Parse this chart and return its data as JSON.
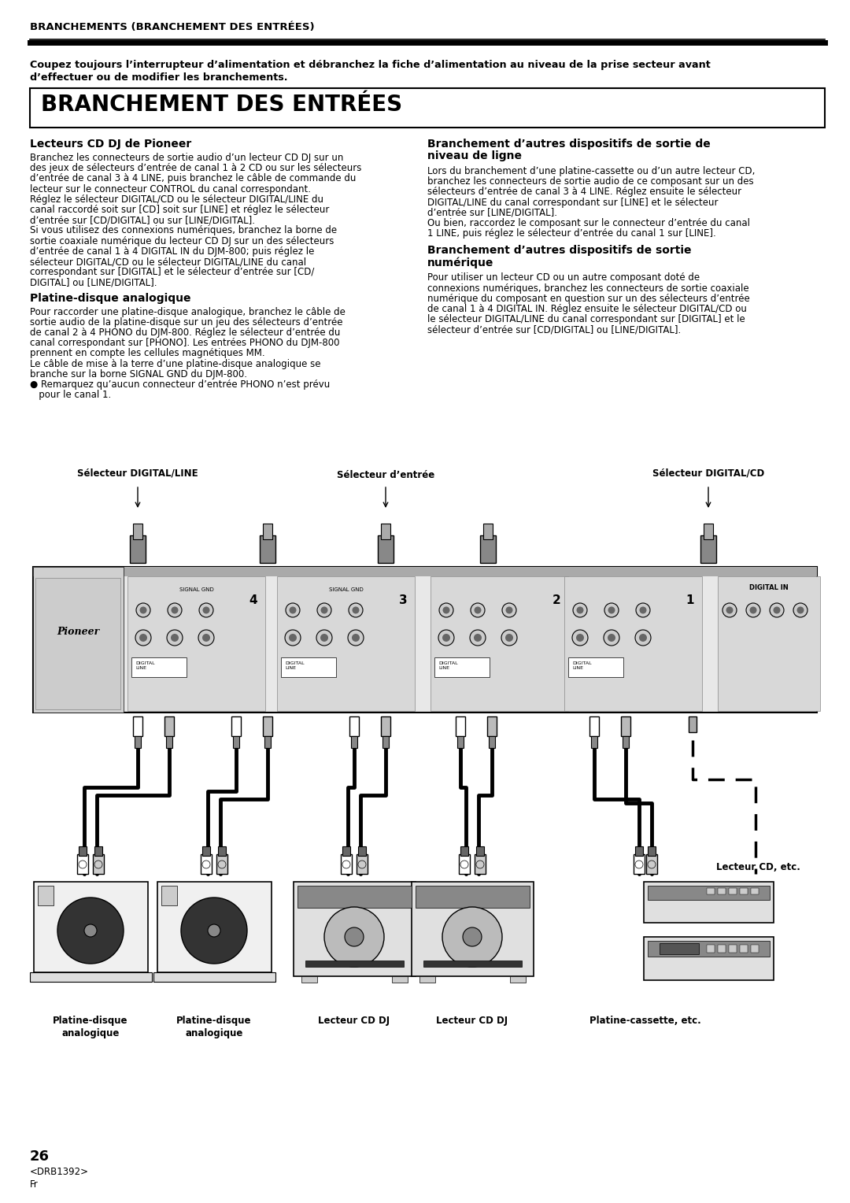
{
  "page_title": "BRANCHEMENTS (BRANCHEMENT DES ENTRÉES)",
  "warning_line1": "Coupez toujours l’interrupteur d’alimentation et débranchez la fiche d’alimentation au niveau de la prise secteur avant",
  "warning_line2": "d’effectuer ou de modifier les branchements.",
  "section_title": "BRANCHEMENT DES ENTRÉES",
  "col1_title1": "Lecteurs CD DJ de Pioneer",
  "col1_body1_lines": [
    "Branchez les connecteurs de sortie audio d’un lecteur CD DJ sur un",
    "des jeux de sélecteurs d’entrée de canal 1 à 2 CD ou sur les sélecteurs",
    "d’entrée de canal 3 à 4 LINE, puis branchez le câble de commande du",
    "lecteur sur le connecteur CONTROL du canal correspondant.",
    "Réglez le sélecteur DIGITAL/CD ou le sélecteur DIGITAL/LINE du",
    "canal raccordé soit sur [CD] soit sur [LINE] et réglez le sélecteur",
    "d’entrée sur [CD/DIGITAL] ou sur [LINE/DIGITAL].",
    "Si vous utilisez des connexions numériques, branchez la borne de",
    "sortie coaxiale numérique du lecteur CD DJ sur un des sélecteurs",
    "d’entrée de canal 1 à 4 DIGITAL IN du DJM-800; puis réglez le",
    "sélecteur DIGITAL/CD ou le sélecteur DIGITAL/LINE du canal",
    "correspondant sur [DIGITAL] et le sélecteur d’entrée sur [CD/",
    "DIGITAL] ou [LINE/DIGITAL]."
  ],
  "col1_title2": "Platine-disque analogique",
  "col1_body2_lines": [
    "Pour raccorder une platine-disque analogique, branchez le câble de",
    "sortie audio de la platine-disque sur un jeu des sélecteurs d’entrée",
    "de canal 2 à 4 PHONO du DJM-800. Réglez le sélecteur d’entrée du",
    "canal correspondant sur [PHONO]. Les entrées PHONO du DJM-800",
    "prennent en compte les cellules magnétiques MM.",
    "Le câble de mise à la terre d’une platine-disque analogique se",
    "branche sur la borne SIGNAL GND du DJM-800.",
    "● Remarquez qu’aucun connecteur d’entrée PHONO n’est prévu",
    "   pour le canal 1."
  ],
  "col2_title1_line1": "Branchement d’autres dispositifs de sortie de",
  "col2_title1_line2": "niveau de ligne",
  "col2_body1_lines": [
    "Lors du branchement d’une platine-cassette ou d’un autre lecteur CD,",
    "branchez les connecteurs de sortie audio de ce composant sur un des",
    "sélecteurs d’entrée de canal 3 à 4 LINE. Réglez ensuite le sélecteur",
    "DIGITAL/LINE du canal correspondant sur [LINE] et le sélecteur",
    "d’entrée sur [LINE/DIGITAL].",
    "Ou bien, raccordez le composant sur le connecteur d’entrée du canal",
    "1 LINE, puis réglez le sélecteur d’entrée du canal 1 sur [LINE]."
  ],
  "col2_title2_line1": "Branchement d’autres dispositifs de sortie",
  "col2_title2_line2": "numérique",
  "col2_body2_lines": [
    "Pour utiliser un lecteur CD ou un autre composant doté de",
    "connexions numériques, branchez les connecteurs de sortie coaxiale",
    "numérique du composant en question sur un des sélecteurs d’entrée",
    "de canal 1 à 4 DIGITAL IN. Réglez ensuite le sélecteur DIGITAL/CD ou",
    "le sélecteur DIGITAL/LINE du canal correspondant sur [DIGITAL] et le",
    "sélecteur d’entrée sur [CD/DIGITAL] ou [LINE/DIGITAL]."
  ],
  "diag_label_left": "Sélecteur DIGITAL/LINE",
  "diag_label_center": "Sélecteur d’entrée",
  "diag_label_right": "Sélecteur DIGITAL/CD",
  "bottom_labels": [
    [
      "Platine-disque",
      "analogique"
    ],
    [
      "Platine-disque",
      "analogique"
    ],
    [
      "Lecteur CD DJ"
    ],
    [
      "Lecteur CD DJ"
    ],
    [
      "Platine-cassette, etc."
    ]
  ],
  "label_right_side": "Lecteur CD, etc.",
  "page_number": "26",
  "doc_code": "<DRB1392>",
  "doc_lang": "Fr"
}
